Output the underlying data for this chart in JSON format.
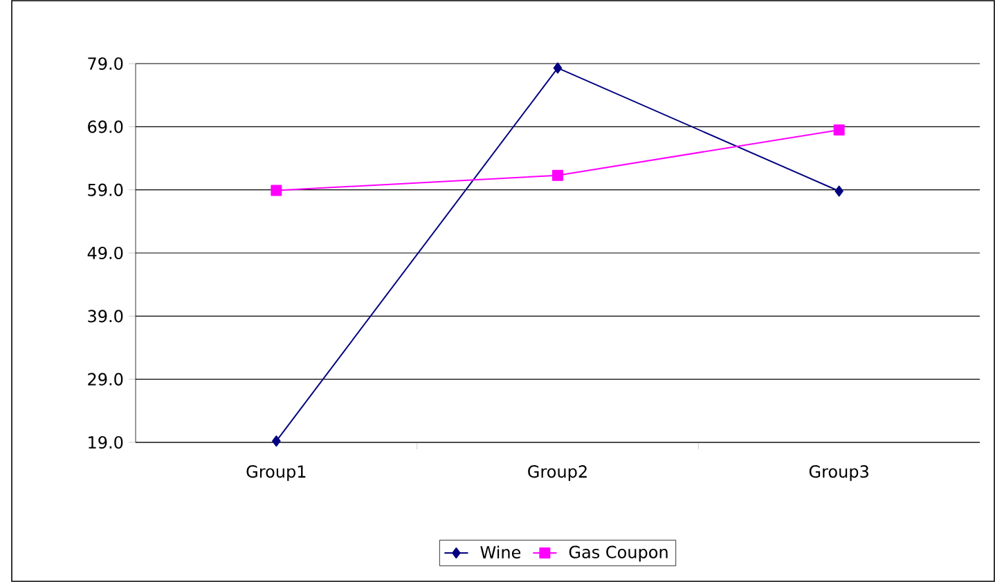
{
  "chart_data": {
    "type": "line",
    "categories": [
      "Group1",
      "Group2",
      "Group3"
    ],
    "series": [
      {
        "name": "Wine",
        "color": "#000080",
        "values": [
          19.2,
          78.3,
          58.8
        ],
        "marker": "diamond"
      },
      {
        "name": "Gas Coupon",
        "color": "#ff00ff",
        "values": [
          58.9,
          61.3,
          68.5
        ],
        "marker": "square"
      }
    ],
    "ylim": [
      19,
      79
    ],
    "yticks": [
      {
        "value": 19,
        "label": "19.0"
      },
      {
        "value": 29,
        "label": "29.0"
      },
      {
        "value": 39,
        "label": "39.0"
      },
      {
        "value": 49,
        "label": "49.0"
      },
      {
        "value": 59,
        "label": "59.0"
      },
      {
        "value": 69,
        "label": "69.0"
      },
      {
        "value": 79,
        "label": "79.0"
      }
    ],
    "grid": "y",
    "legend": "bottom",
    "line_style": "solid"
  }
}
